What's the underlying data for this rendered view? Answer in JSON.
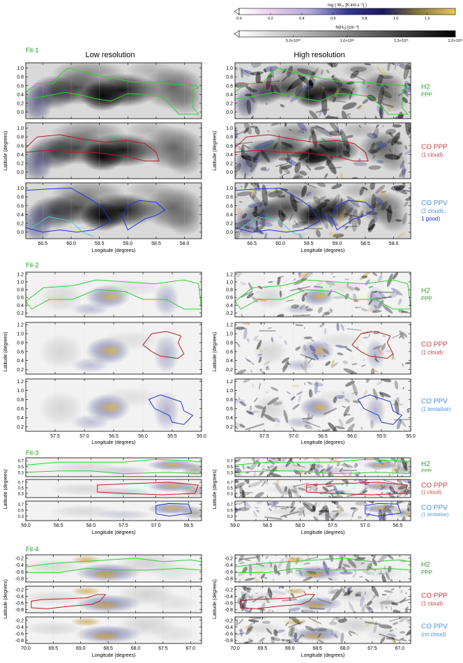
{
  "colorbars": [
    {
      "label": "log ( W₀₁ [K.km.s⁻¹] )",
      "ticks": [
        "0.0",
        "0.2",
        "0.4",
        "0.6",
        "0.8",
        "1.0",
        "1.2"
      ],
      "tick_values": [
        0,
        0.2,
        0.4,
        0.6,
        0.8,
        1.0,
        1.2
      ],
      "range": [
        0,
        1.38
      ],
      "colors": [
        "#ffffff",
        "#e8c8ec",
        "#b0a8d8",
        "#34398e",
        "#1a1a5c",
        "#8a7a3a",
        "#e8c860"
      ]
    },
    {
      "label": "N(H₂) [cm⁻²]",
      "ticks": [
        "5.0×10²⁰",
        "1.0×10²¹",
        "1.5×10²¹",
        "2.0×10²¹"
      ],
      "tick_values": [
        0.5,
        1.0,
        1.5,
        2.0
      ],
      "range": [
        0,
        2.0
      ],
      "colors": [
        "#ffffff",
        "#000000"
      ]
    }
  ],
  "column_titles": {
    "left": "Low resolution",
    "right": "High resolution"
  },
  "axis_labels": {
    "x": "Longitude (degrees)",
    "y": "Latitude (degrees)"
  },
  "chart_data": [
    {
      "type": "heatmap",
      "group": "Fil-1",
      "xlim": [
        60.8,
        57.7
      ],
      "ylim": [
        -0.15,
        1.12
      ],
      "xticks": [
        "60.5",
        "60.0",
        "59.5",
        "59.0",
        "58.5",
        "58.0"
      ],
      "xtick_values": [
        60.5,
        60.0,
        59.5,
        59.0,
        58.5,
        58.0
      ],
      "yticks": [
        "0.0",
        "0.2",
        "0.4",
        "0.6",
        "0.8",
        "1.0"
      ],
      "ytick_values": [
        0.0,
        0.2,
        0.4,
        0.6,
        0.8,
        1.0
      ],
      "rows": [
        {
          "label_lines": [
            "H2",
            "PPP"
          ],
          "label_color": "#2ea02e",
          "contour_color": "#30d030"
        },
        {
          "label_lines": [
            "CO PPP",
            "(1 cloud)"
          ],
          "label_color": "#c84040",
          "contour_color": "#b02020"
        },
        {
          "label_lines": [
            "CO PPV",
            "(2 clouds,",
            "1 good)"
          ],
          "label_color": "#4a90d8",
          "contour_color": "#2030e0"
        }
      ]
    },
    {
      "type": "heatmap",
      "group": "Fil-2",
      "xlim": [
        58.0,
        55.0
      ],
      "ylim": [
        0.1,
        1.25
      ],
      "xticks": [
        "57.5",
        "57.0",
        "56.5",
        "56.0",
        "55.5",
        "55.0"
      ],
      "xtick_values": [
        57.5,
        57.0,
        56.5,
        56.0,
        55.5,
        55.0
      ],
      "yticks": [
        "0.2",
        "0.4",
        "0.6",
        "0.8",
        "1.0",
        "1.2"
      ],
      "ytick_values": [
        0.2,
        0.4,
        0.6,
        0.8,
        1.0,
        1.2
      ],
      "rows": [
        {
          "label_lines": [
            "H2",
            "PPP"
          ],
          "label_color": "#2ea02e",
          "contour_color": "#30d030"
        },
        {
          "label_lines": [
            "CO PPP",
            "(1 cloud)"
          ],
          "label_color": "#c84040",
          "contour_color": "#b02020"
        },
        {
          "label_lines": [
            "CO PPV",
            "(1 tentative)"
          ],
          "label_color": "#4a90d8",
          "contour_color": "#2030e0"
        }
      ]
    },
    {
      "type": "heatmap",
      "group": "Fil-3",
      "xlim": [
        59.0,
        56.3
      ],
      "ylim": [
        0.15,
        0.8
      ],
      "xticks": [
        "59.0",
        "58.5",
        "58.0",
        "57.5",
        "57.0",
        "56.5"
      ],
      "xtick_values": [
        59.0,
        58.5,
        58.0,
        57.5,
        57.0,
        56.5
      ],
      "yticks": [
        "0.3",
        "0.5",
        "0.7"
      ],
      "ytick_values": [
        0.3,
        0.5,
        0.7
      ],
      "rows": [
        {
          "label_lines": [
            "H2",
            "PPP"
          ],
          "label_color": "#2ea02e",
          "contour_color": "#30d030"
        },
        {
          "label_lines": [
            "CO PPP",
            "(1 cloud)"
          ],
          "label_color": "#c84040",
          "contour_color": "#b02020"
        },
        {
          "label_lines": [
            "CO PPV",
            "(1 tentative)"
          ],
          "label_color": "#4a90d8",
          "contour_color": "#2030e0"
        }
      ]
    },
    {
      "type": "heatmap",
      "group": "Fil-4",
      "xlim": [
        70.0,
        66.8
      ],
      "ylim": [
        -0.9,
        -0.1
      ],
      "xticks": [
        "70.0",
        "69.5",
        "69.0",
        "68.5",
        "68.0",
        "67.5",
        "67.0"
      ],
      "xtick_values": [
        70.0,
        69.5,
        69.0,
        68.5,
        68.0,
        67.5,
        67.0
      ],
      "yticks": [
        "-0.2",
        "-0.4",
        "-0.6",
        "-0.8"
      ],
      "ytick_values": [
        -0.2,
        -0.4,
        -0.6,
        -0.8
      ],
      "rows": [
        {
          "label_lines": [
            "H2",
            "PPP"
          ],
          "label_color": "#2ea02e",
          "contour_color": "#30d030"
        },
        {
          "label_lines": [
            "CO PPP",
            "(1 cloud)"
          ],
          "label_color": "#c84040",
          "contour_color": "#b02020"
        },
        {
          "label_lines": [
            "CO PPV",
            "(no cloud)"
          ],
          "label_color": "#4a90d8",
          "contour_color": "#2030e0"
        }
      ]
    }
  ]
}
